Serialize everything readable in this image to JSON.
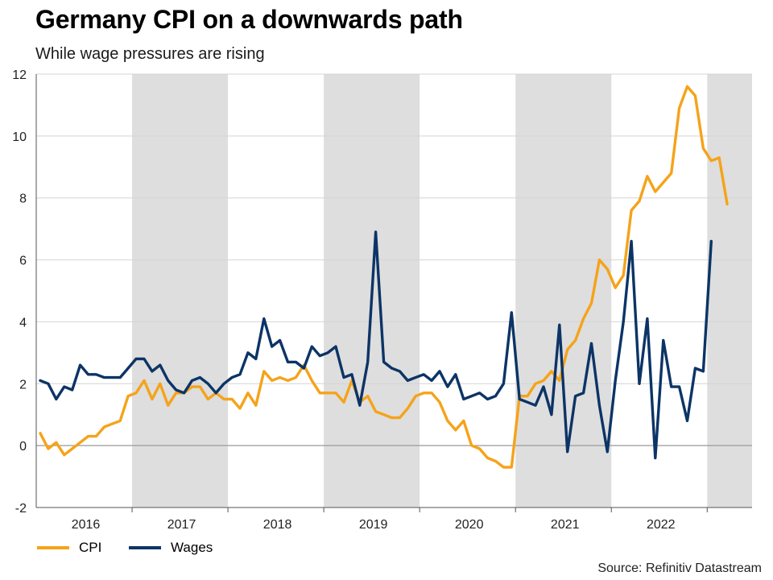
{
  "chart_data": {
    "type": "line",
    "title": "Germany CPI on a downwards path",
    "subtitle": "While wage pressures are rising",
    "xlabel": "",
    "ylabel": "",
    "ylim": [
      -2,
      12
    ],
    "yticks": [
      -2,
      0,
      2,
      4,
      6,
      8,
      10,
      12
    ],
    "years": [
      "2016",
      "2017",
      "2018",
      "2019",
      "2020",
      "2021",
      "2022"
    ],
    "shaded_years": [
      "2017",
      "2019",
      "2021",
      "2023"
    ],
    "grid": true,
    "legend_position": "bottom-left",
    "source": "Source: Refinitiv Datastream",
    "colors": {
      "CPI": "#F5A31A",
      "Wages": "#0C3466",
      "shade": "#DEDEDE"
    },
    "series": [
      {
        "name": "CPI",
        "start": "2016-01",
        "frequency": "monthly",
        "values": [
          0.4,
          -0.1,
          0.1,
          -0.3,
          -0.1,
          0.1,
          0.3,
          0.3,
          0.6,
          0.7,
          0.8,
          1.6,
          1.7,
          2.1,
          1.5,
          2.0,
          1.3,
          1.7,
          1.7,
          1.9,
          1.9,
          1.5,
          1.7,
          1.5,
          1.5,
          1.2,
          1.7,
          1.3,
          2.4,
          2.1,
          2.2,
          2.1,
          2.2,
          2.6,
          2.1,
          1.7,
          1.7,
          1.7,
          1.4,
          2.1,
          1.4,
          1.6,
          1.1,
          1.0,
          0.9,
          0.9,
          1.2,
          1.6,
          1.7,
          1.7,
          1.4,
          0.8,
          0.5,
          0.8,
          0.0,
          -0.1,
          -0.4,
          -0.5,
          -0.7,
          -0.7,
          1.6,
          1.6,
          2.0,
          2.1,
          2.4,
          2.1,
          3.1,
          3.4,
          4.1,
          4.6,
          6.0,
          5.7,
          5.1,
          5.5,
          7.6,
          7.9,
          8.7,
          8.2,
          8.5,
          8.8,
          10.9,
          11.6,
          11.3,
          9.6,
          9.2,
          9.3,
          7.8
        ]
      },
      {
        "name": "Wages",
        "start": "2016-01",
        "frequency": "monthly",
        "values": [
          2.1,
          2.0,
          1.5,
          1.9,
          1.8,
          2.6,
          2.3,
          2.3,
          2.2,
          2.2,
          2.2,
          2.5,
          2.8,
          2.8,
          2.4,
          2.6,
          2.1,
          1.8,
          1.7,
          2.1,
          2.2,
          2.0,
          1.7,
          2.0,
          2.2,
          2.3,
          3.0,
          2.8,
          4.1,
          3.2,
          3.4,
          2.7,
          2.7,
          2.5,
          3.2,
          2.9,
          3.0,
          3.2,
          2.2,
          2.3,
          1.3,
          2.7,
          6.9,
          2.7,
          2.5,
          2.4,
          2.1,
          2.2,
          2.3,
          2.1,
          2.4,
          1.9,
          2.3,
          1.5,
          1.6,
          1.7,
          1.5,
          1.6,
          2.0,
          4.3,
          1.5,
          1.4,
          1.3,
          1.9,
          1.0,
          3.9,
          -0.2,
          1.6,
          1.7,
          3.3,
          1.3,
          -0.2,
          2.1,
          4.0,
          6.6,
          2.0,
          4.1,
          -0.4,
          3.4,
          1.9,
          1.9,
          0.8,
          2.5,
          2.4,
          6.6
        ]
      }
    ]
  }
}
